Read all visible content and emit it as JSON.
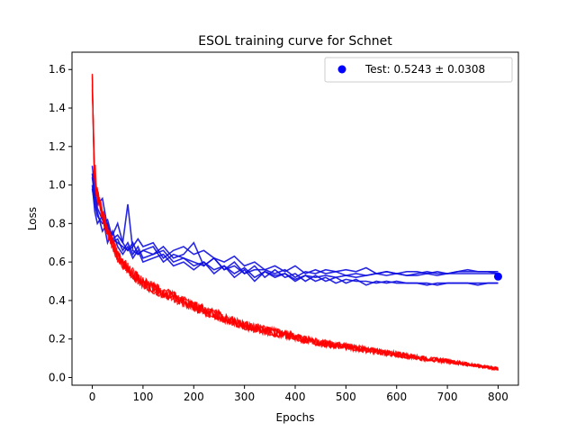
{
  "chart_data": {
    "type": "line",
    "title": "ESOL training curve for Schnet",
    "xlabel": "Epochs",
    "ylabel": "Loss",
    "xlim": [
      -40,
      840
    ],
    "ylim": [
      -0.04,
      1.69
    ],
    "xticks": [
      0,
      100,
      200,
      300,
      400,
      500,
      600,
      700,
      800
    ],
    "yticks": [
      0.0,
      0.2,
      0.4,
      0.6,
      0.8,
      1.0,
      1.2,
      1.4,
      1.6
    ],
    "grid": false,
    "legend": {
      "position": "top-right",
      "entries": [
        "Test: 0.5243 ± 0.0308"
      ]
    },
    "colors": {
      "validation": "#1010e0",
      "train": "#ff0000",
      "test": "#0000ff"
    },
    "validation_series": [
      {
        "x": [
          0,
          5,
          10,
          20,
          30,
          40,
          50,
          60,
          70,
          80,
          90,
          100,
          120,
          140,
          160,
          180,
          200,
          220,
          240,
          260,
          280,
          300,
          320,
          340,
          360,
          380,
          400,
          420,
          440,
          460,
          480,
          500,
          520,
          540,
          560,
          580,
          600,
          620,
          640,
          660,
          680,
          700,
          720,
          740,
          760,
          780,
          800
        ],
        "y": [
          1.1,
          0.98,
          0.88,
          0.82,
          0.76,
          0.72,
          0.7,
          0.68,
          0.66,
          0.68,
          0.72,
          0.68,
          0.7,
          0.62,
          0.66,
          0.68,
          0.64,
          0.66,
          0.62,
          0.6,
          0.63,
          0.58,
          0.6,
          0.56,
          0.58,
          0.55,
          0.58,
          0.54,
          0.56,
          0.54,
          0.55,
          0.53,
          0.54,
          0.53,
          0.54,
          0.55,
          0.54,
          0.53,
          0.54,
          0.55,
          0.54,
          0.54,
          0.55,
          0.55,
          0.55,
          0.55,
          0.55
        ]
      },
      {
        "x": [
          0,
          5,
          10,
          20,
          30,
          40,
          50,
          60,
          70,
          80,
          90,
          100,
          120,
          140,
          160,
          180,
          200,
          220,
          240,
          260,
          280,
          300,
          320,
          340,
          360,
          380,
          400,
          420,
          440,
          460,
          480,
          500,
          520,
          540,
          560,
          580,
          600,
          620,
          640,
          660,
          680,
          700,
          720,
          740,
          760,
          780,
          800
        ],
        "y": [
          1.04,
          0.94,
          0.9,
          0.93,
          0.78,
          0.74,
          0.8,
          0.7,
          0.9,
          0.66,
          0.64,
          0.66,
          0.64,
          0.68,
          0.62,
          0.64,
          0.7,
          0.58,
          0.62,
          0.56,
          0.6,
          0.54,
          0.58,
          0.52,
          0.56,
          0.52,
          0.54,
          0.5,
          0.53,
          0.5,
          0.52,
          0.49,
          0.51,
          0.48,
          0.5,
          0.49,
          0.5,
          0.49,
          0.49,
          0.49,
          0.48,
          0.49,
          0.49,
          0.49,
          0.49,
          0.49,
          0.49
        ]
      },
      {
        "x": [
          0,
          5,
          10,
          20,
          30,
          40,
          50,
          60,
          70,
          80,
          90,
          100,
          120,
          140,
          160,
          180,
          200,
          220,
          240,
          260,
          280,
          300,
          320,
          340,
          360,
          380,
          400,
          420,
          440,
          460,
          480,
          500,
          520,
          540,
          560,
          580,
          600,
          620,
          640,
          660,
          680,
          700,
          720,
          740,
          760,
          780,
          800
        ],
        "y": [
          1.0,
          0.86,
          0.8,
          0.84,
          0.7,
          0.76,
          0.68,
          0.64,
          0.68,
          0.62,
          0.66,
          0.6,
          0.62,
          0.64,
          0.58,
          0.6,
          0.56,
          0.6,
          0.54,
          0.58,
          0.52,
          0.56,
          0.5,
          0.55,
          0.52,
          0.54,
          0.5,
          0.53,
          0.5,
          0.52,
          0.49,
          0.51,
          0.5,
          0.5,
          0.49,
          0.5,
          0.49,
          0.49,
          0.49,
          0.48,
          0.49,
          0.49,
          0.49,
          0.49,
          0.48,
          0.49,
          0.49
        ]
      },
      {
        "x": [
          0,
          5,
          10,
          20,
          30,
          40,
          50,
          60,
          70,
          80,
          90,
          100,
          120,
          140,
          160,
          180,
          200,
          220,
          240,
          260,
          280,
          300,
          320,
          340,
          360,
          380,
          400,
          420,
          440,
          460,
          480,
          500,
          520,
          540,
          560,
          580,
          600,
          620,
          640,
          660,
          680,
          700,
          720,
          740,
          760,
          780,
          800
        ],
        "y": [
          0.98,
          0.9,
          0.84,
          0.8,
          0.82,
          0.72,
          0.74,
          0.7,
          0.66,
          0.7,
          0.64,
          0.66,
          0.68,
          0.6,
          0.64,
          0.62,
          0.6,
          0.58,
          0.62,
          0.56,
          0.58,
          0.54,
          0.56,
          0.56,
          0.54,
          0.56,
          0.52,
          0.55,
          0.54,
          0.56,
          0.55,
          0.56,
          0.55,
          0.57,
          0.54,
          0.55,
          0.54,
          0.55,
          0.55,
          0.54,
          0.55,
          0.54,
          0.55,
          0.56,
          0.55,
          0.55,
          0.54
        ]
      },
      {
        "x": [
          0,
          5,
          10,
          20,
          30,
          40,
          50,
          60,
          70,
          80,
          90,
          100,
          120,
          140,
          160,
          180,
          200,
          220,
          240,
          260,
          280,
          300,
          320,
          340,
          360,
          380,
          400,
          420,
          440,
          460,
          480,
          500,
          520,
          540,
          560,
          580,
          600,
          620,
          640,
          660,
          680,
          700,
          720,
          740,
          760,
          780,
          800
        ],
        "y": [
          1.06,
          0.92,
          0.86,
          0.76,
          0.8,
          0.7,
          0.72,
          0.66,
          0.7,
          0.64,
          0.68,
          0.62,
          0.64,
          0.66,
          0.6,
          0.62,
          0.58,
          0.6,
          0.56,
          0.58,
          0.54,
          0.57,
          0.52,
          0.55,
          0.53,
          0.54,
          0.51,
          0.53,
          0.52,
          0.53,
          0.52,
          0.53,
          0.52,
          0.53,
          0.54,
          0.53,
          0.54,
          0.53,
          0.53,
          0.54,
          0.53,
          0.54,
          0.54,
          0.54,
          0.54,
          0.54,
          0.54
        ]
      }
    ],
    "train_curve": {
      "x": [
        0,
        1,
        2,
        5,
        10,
        20,
        30,
        50,
        75,
        100,
        150,
        200,
        250,
        300,
        350,
        400,
        450,
        500,
        550,
        600,
        650,
        700,
        750,
        800
      ],
      "y": [
        1.58,
        1.45,
        1.25,
        1.05,
        0.95,
        0.85,
        0.76,
        0.63,
        0.55,
        0.49,
        0.43,
        0.37,
        0.32,
        0.27,
        0.24,
        0.21,
        0.18,
        0.16,
        0.14,
        0.12,
        0.1,
        0.085,
        0.065,
        0.045
      ],
      "noise_band": 0.035
    },
    "test_point": {
      "x": 800,
      "y": 0.5243,
      "std": 0.0308
    }
  }
}
